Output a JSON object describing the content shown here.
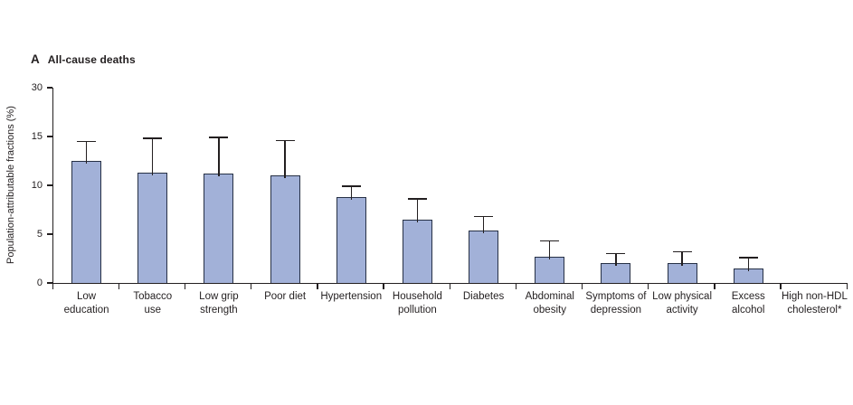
{
  "page": {
    "background": "#ffffff"
  },
  "panel": {
    "letter": "A",
    "title": "All-cause deaths"
  },
  "chart_data": {
    "type": "bar",
    "panel_label": "A",
    "title": "All-cause deaths",
    "xlabel": "",
    "ylabel": "Population-attributable fractions (%)",
    "ytick_labels": [
      "0",
      "5",
      "10",
      "15",
      "30"
    ],
    "axis_layout_note": "y ticks equally spaced; interval 15-30 compressed into a single tick step (scale break look); no gridlines; no legend",
    "categories": [
      "Low education",
      "Tobacco use",
      "Low grip strength",
      "Poor diet",
      "Hypertension",
      "Household pollution",
      "Diabetes",
      "Abdominal obesity",
      "Symptoms of depression",
      "Low physical activity",
      "Excess alcohol",
      "High non-HDL cholesterol*"
    ],
    "categories_lines": [
      [
        "Low",
        "education"
      ],
      [
        "Tobacco",
        "use"
      ],
      [
        "Low grip",
        "strength"
      ],
      [
        "Poor diet"
      ],
      [
        "Hypertension"
      ],
      [
        "Household",
        "pollution"
      ],
      [
        "Diabetes"
      ],
      [
        "Abdominal",
        "obesity"
      ],
      [
        "Symptoms of",
        "depression"
      ],
      [
        "Low physical",
        "activity"
      ],
      [
        "Excess",
        "alcohol"
      ],
      [
        "High non-HDL",
        "cholesterol*"
      ]
    ],
    "values": [
      12.5,
      11.3,
      11.2,
      11.0,
      8.8,
      6.5,
      5.4,
      2.7,
      2.0,
      2.0,
      1.5,
      0
    ],
    "upper_ci": [
      14.5,
      14.8,
      14.9,
      14.6,
      9.9,
      8.6,
      6.8,
      4.3,
      3.0,
      3.2,
      2.6,
      0
    ],
    "bar_fill": "#a2b1d8",
    "bar_border": "#263045",
    "axis_color": "#231f20",
    "text_color": "#231f20",
    "grid": "off",
    "legend": "none"
  }
}
